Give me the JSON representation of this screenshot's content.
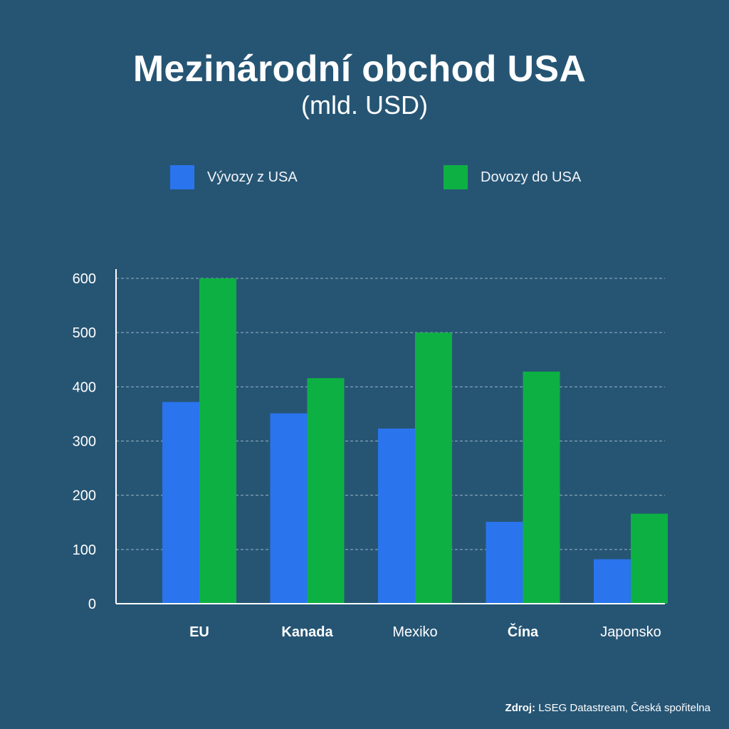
{
  "header": {
    "title": "Mezinárodní obchod USA",
    "subtitle": "(mld. USD)"
  },
  "colors": {
    "background": "#265574",
    "exports": "#2a74ee",
    "imports": "#0db143",
    "grid": "#b9c9d6",
    "axis": "#ffffff"
  },
  "chart_data": {
    "type": "bar",
    "title": "Mezinárodní obchod USA",
    "subtitle": "(mld. USD)",
    "categories": [
      "EU",
      "Kanada",
      "Mexiko",
      "Čína",
      "Japonsko"
    ],
    "series": [
      {
        "name": "Vývozy z USA",
        "color": "#2a74ee",
        "values": [
          372,
          351,
          323,
          151,
          82
        ]
      },
      {
        "name": "Dovozy do USA",
        "color": "#0db143",
        "values": [
          600,
          416,
          500,
          428,
          166
        ]
      }
    ],
    "ylim": [
      0,
      600
    ],
    "yticks": [
      0,
      100,
      200,
      300,
      400,
      500,
      600
    ],
    "grid": true,
    "legend": "top"
  },
  "footer": {
    "source_label": "Zdroj:",
    "source_text": "LSEG Datastream, Česká spořitelna"
  }
}
